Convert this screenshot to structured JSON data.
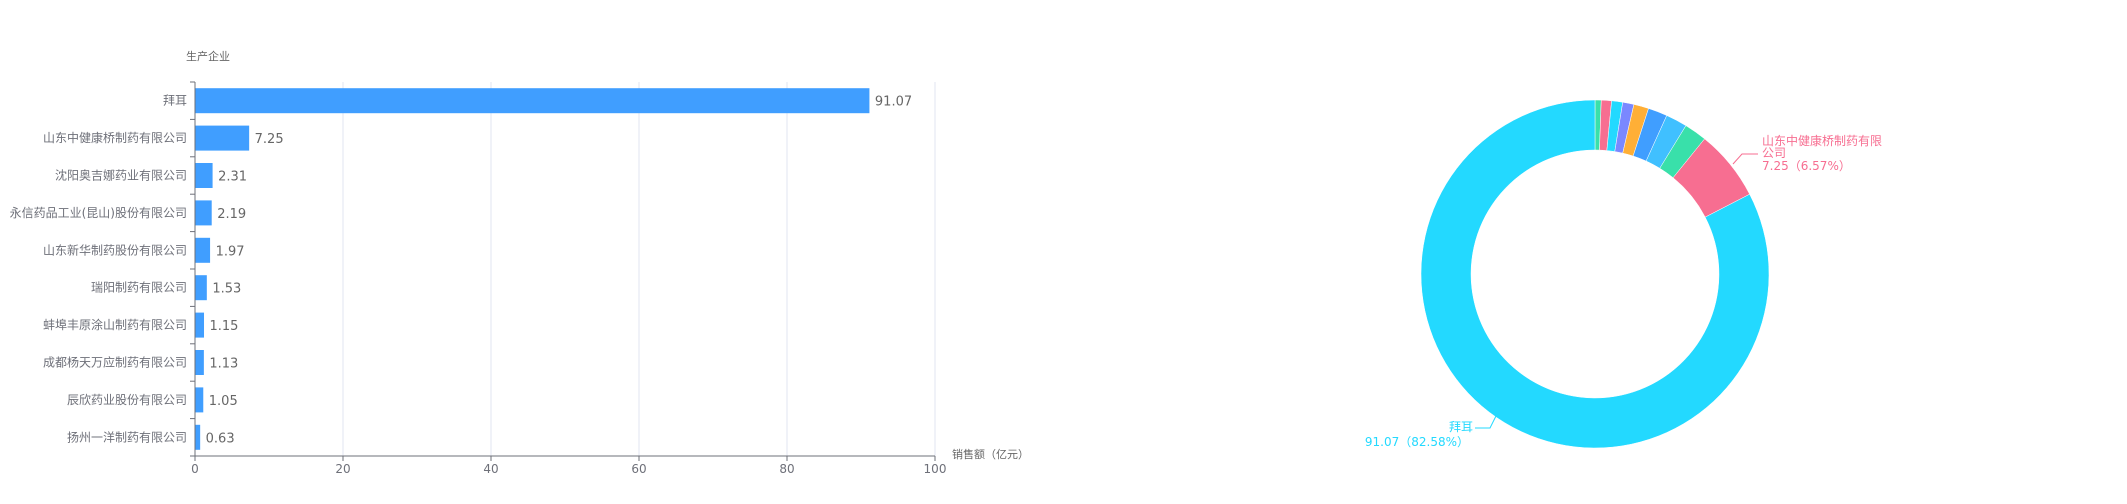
{
  "chart_data": [
    {
      "type": "bar",
      "orientation": "horizontal",
      "ylabel": "生产企业",
      "xlabel": "销售额（亿元）",
      "xlim": [
        0,
        100
      ],
      "xticks": [
        "0",
        "20",
        "40",
        "60",
        "80",
        "100"
      ],
      "grid": true,
      "color": "#409eff",
      "categories": [
        "拜耳",
        "山东中健康桥制药有限公司",
        "沈阳奥吉娜药业有限公司",
        "永信药品工业(昆山)股份有限公司",
        "山东新华制药股份有限公司",
        "瑞阳制药有限公司",
        "蚌埠丰原涂山制药有限公司",
        "成都杨天万应制药有限公司",
        "辰欣药业股份有限公司",
        "扬州一洋制药有限公司"
      ],
      "values": [
        91.07,
        7.25,
        2.31,
        2.19,
        1.97,
        1.53,
        1.15,
        1.13,
        1.05,
        0.63
      ],
      "data_labels": [
        "91.07",
        "7.25",
        "2.31",
        "2.19",
        "1.97",
        "1.53",
        "1.15",
        "1.13",
        "1.05",
        "0.63"
      ]
    },
    {
      "type": "pie",
      "donut": true,
      "palette": [
        "#23d9ff",
        "#f76e91",
        "#39e0aa",
        "#40c0ff",
        "#409eff",
        "#ffaf36",
        "#7a88ff"
      ],
      "categories": [
        "拜耳",
        "山东中健康桥制药有限公司",
        "沈阳奥吉娜药业有限公司",
        "永信药品工业(昆山)股份有限公司",
        "山东新华制药股份有限公司",
        "瑞阳制药有限公司",
        "蚌埠丰原涂山制药有限公司",
        "成都杨天万应制药有限公司",
        "辰欣药业股份有限公司",
        "扬州一洋制药有限公司"
      ],
      "values": [
        91.07,
        7.25,
        2.31,
        2.19,
        1.97,
        1.53,
        1.15,
        1.13,
        1.05,
        0.63
      ],
      "labels": [
        {
          "lines": [
            "拜耳",
            "91.07（82.58%）"
          ]
        },
        {
          "lines": [
            "山东中健康桥制药有限",
            "公司",
            "7.25（6.57%）"
          ]
        }
      ]
    }
  ]
}
